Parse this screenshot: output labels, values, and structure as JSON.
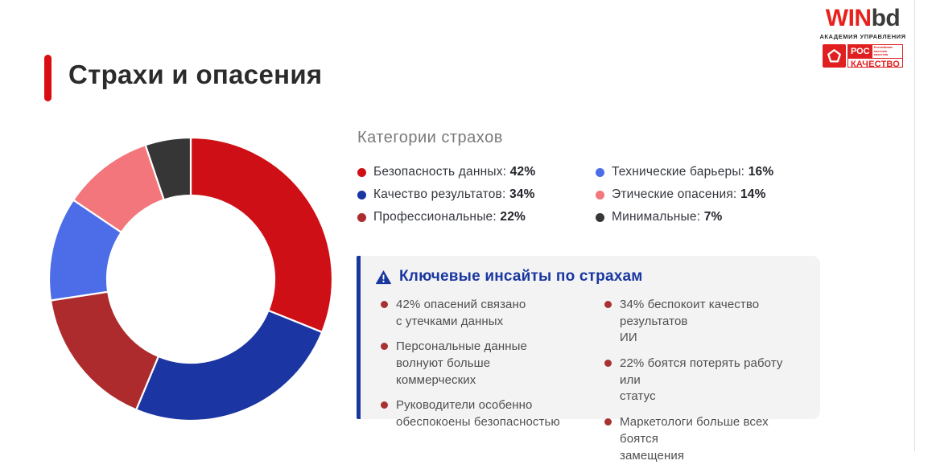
{
  "colors": {
    "accent_red": "#d90d12",
    "accent_blue": "#1a37a0",
    "bullet_red": "#a83232",
    "win_red": "#e8211d",
    "rosk_red": "#e02020"
  },
  "logo": {
    "win": "WIN",
    "bd": "bd",
    "subtitle": "АКАДЕМИЯ УПРАВЛЕНИЯ",
    "roskachestvo": {
      "top": "РОС",
      "bottom": "КАЧЕСТВО",
      "tagline": "Российская\nсистема\nкачества"
    }
  },
  "page_title": "Страхи и опасения",
  "chart_data": {
    "type": "pie",
    "variant": "donut",
    "title": "Категории страхов",
    "units": "%",
    "note": "values sum to 135; donut angles are proportional to values",
    "segments": [
      {
        "label": "Безопасность данных",
        "value": 42,
        "color": "#ce1016"
      },
      {
        "label": "Качество результатов",
        "value": 34,
        "color": "#1b35a3"
      },
      {
        "label": "Профессиональные",
        "value": 22,
        "color": "#ad2b2c"
      },
      {
        "label": "Технические барьеры",
        "value": 16,
        "color": "#4d6ce8"
      },
      {
        "label": "Этические опасения",
        "value": 14,
        "color": "#f3767c"
      },
      {
        "label": "Минимальные",
        "value": 7,
        "color": "#363636"
      }
    ],
    "legend_position": "right",
    "start_angle_deg": 0,
    "direction": "clockwise"
  },
  "insights": {
    "title": "Ключевые инсайты по страхам",
    "columns": [
      [
        "42% опасений связано\nс утечками данных",
        "Персональные данные\nволнуют больше\nкоммерческих",
        "Руководители особенно\nобеспокоены безопасностью"
      ],
      [
        "34% беспокоит качество результатов\nИИ",
        "22% боятся потерять работу или\nстатус",
        "Маркетологи больше всех боятся\nзамещения"
      ]
    ]
  }
}
